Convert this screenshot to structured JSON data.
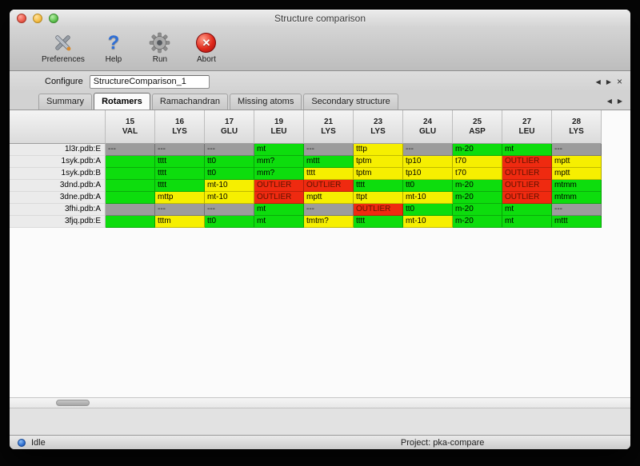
{
  "window": {
    "title": "Structure comparison"
  },
  "toolbar": {
    "buttons": [
      {
        "label": "Preferences",
        "icon": "tools-icon"
      },
      {
        "label": "Help",
        "icon": "question-icon"
      },
      {
        "label": "Run",
        "icon": "gear-icon"
      },
      {
        "label": "Abort",
        "icon": "abort-icon"
      }
    ]
  },
  "configure": {
    "label": "Configure",
    "field_value": "StructureComparison_1",
    "nav_prev": "◀",
    "nav_next": "▶",
    "close": "×"
  },
  "tabs": {
    "items": [
      {
        "label": "Summary",
        "active": false
      },
      {
        "label": "Rotamers",
        "active": true
      },
      {
        "label": "Ramachandran",
        "active": false
      },
      {
        "label": "Missing atoms",
        "active": false
      },
      {
        "label": "Secondary structure",
        "active": false
      }
    ],
    "nav_prev": "◀",
    "nav_next": "▶"
  },
  "table": {
    "columns": [
      {
        "number": "15",
        "residue": "VAL"
      },
      {
        "number": "16",
        "residue": "LYS"
      },
      {
        "number": "17",
        "residue": "GLU"
      },
      {
        "number": "19",
        "residue": "LEU"
      },
      {
        "number": "21",
        "residue": "LYS"
      },
      {
        "number": "23",
        "residue": "LYS"
      },
      {
        "number": "24",
        "residue": "GLU"
      },
      {
        "number": "25",
        "residue": "ASP"
      },
      {
        "number": "27",
        "residue": "LEU"
      },
      {
        "number": "28",
        "residue": "LYS"
      }
    ],
    "rows": [
      {
        "label": "1l3r.pdb:E",
        "cells": [
          {
            "text": "---",
            "status": "missing"
          },
          {
            "text": "---",
            "status": "missing"
          },
          {
            "text": "---",
            "status": "missing"
          },
          {
            "text": "mt",
            "status": "good"
          },
          {
            "text": "---",
            "status": "missing"
          },
          {
            "text": "tttp",
            "status": "warn"
          },
          {
            "text": "---",
            "status": "missing"
          },
          {
            "text": "m-20",
            "status": "good"
          },
          {
            "text": "mt",
            "status": "good"
          },
          {
            "text": "---",
            "status": "missing"
          }
        ]
      },
      {
        "label": "1syk.pdb:A",
        "cells": [
          {
            "text": "",
            "status": "good"
          },
          {
            "text": "tttt",
            "status": "good"
          },
          {
            "text": "tt0",
            "status": "good"
          },
          {
            "text": "mm?",
            "status": "good"
          },
          {
            "text": "mttt",
            "status": "good"
          },
          {
            "text": "tptm",
            "status": "warn"
          },
          {
            "text": "tp10",
            "status": "warn"
          },
          {
            "text": "t70",
            "status": "warn"
          },
          {
            "text": "OUTLIER",
            "status": "outlier"
          },
          {
            "text": "mptt",
            "status": "warn"
          }
        ]
      },
      {
        "label": "1syk.pdb:B",
        "cells": [
          {
            "text": "",
            "status": "good"
          },
          {
            "text": "tttt",
            "status": "good"
          },
          {
            "text": "tt0",
            "status": "good"
          },
          {
            "text": "mm?",
            "status": "good"
          },
          {
            "text": "tttt",
            "status": "warn"
          },
          {
            "text": "tptm",
            "status": "warn"
          },
          {
            "text": "tp10",
            "status": "warn"
          },
          {
            "text": "t70",
            "status": "warn"
          },
          {
            "text": "OUTLIER",
            "status": "outlier"
          },
          {
            "text": "mptt",
            "status": "warn"
          }
        ]
      },
      {
        "label": "3dnd.pdb:A",
        "cells": [
          {
            "text": "",
            "status": "good"
          },
          {
            "text": "tttt",
            "status": "good"
          },
          {
            "text": "mt-10",
            "status": "warn"
          },
          {
            "text": "OUTLIER",
            "status": "outlier"
          },
          {
            "text": "OUTLIER",
            "status": "outlier"
          },
          {
            "text": "tttt",
            "status": "good"
          },
          {
            "text": "tt0",
            "status": "good"
          },
          {
            "text": "m-20",
            "status": "good"
          },
          {
            "text": "OUTLIER",
            "status": "outlier"
          },
          {
            "text": "mtmm",
            "status": "good"
          }
        ]
      },
      {
        "label": "3dne.pdb:A",
        "cells": [
          {
            "text": "",
            "status": "good"
          },
          {
            "text": "mttp",
            "status": "warn"
          },
          {
            "text": "mt-10",
            "status": "warn"
          },
          {
            "text": "OUTLIER",
            "status": "outlier"
          },
          {
            "text": "mptt",
            "status": "warn"
          },
          {
            "text": "ttpt",
            "status": "warn"
          },
          {
            "text": "mt-10",
            "status": "warn"
          },
          {
            "text": "m-20",
            "status": "good"
          },
          {
            "text": "OUTLIER",
            "status": "outlier"
          },
          {
            "text": "mtmm",
            "status": "good"
          }
        ]
      },
      {
        "label": "3fhi.pdb:A",
        "cells": [
          {
            "text": "",
            "status": "missing"
          },
          {
            "text": "---",
            "status": "missing"
          },
          {
            "text": "---",
            "status": "missing"
          },
          {
            "text": "mt",
            "status": "good"
          },
          {
            "text": "---",
            "status": "missing"
          },
          {
            "text": "OUTLIER",
            "status": "outlier"
          },
          {
            "text": "tt0",
            "status": "good"
          },
          {
            "text": "m-20",
            "status": "good"
          },
          {
            "text": "mt",
            "status": "good"
          },
          {
            "text": "---",
            "status": "missing"
          }
        ]
      },
      {
        "label": "3fjq.pdb:E",
        "cells": [
          {
            "text": "",
            "status": "good"
          },
          {
            "text": "tttm",
            "status": "warn"
          },
          {
            "text": "tt0",
            "status": "good"
          },
          {
            "text": "mt",
            "status": "good"
          },
          {
            "text": "tmtm?",
            "status": "warn"
          },
          {
            "text": "tttt",
            "status": "good"
          },
          {
            "text": "mt-10",
            "status": "warn"
          },
          {
            "text": "m-20",
            "status": "good"
          },
          {
            "text": "mt",
            "status": "good"
          },
          {
            "text": "mttt",
            "status": "good"
          }
        ]
      }
    ]
  },
  "statusbar": {
    "state": "Idle",
    "project": "Project: pka-compare"
  },
  "colors": {
    "good": "#0ddd0d",
    "warn": "#f6ef00",
    "outlier": "#ef2a10",
    "missing": "#9c9c9c",
    "outlier_text": "#5f1200"
  }
}
